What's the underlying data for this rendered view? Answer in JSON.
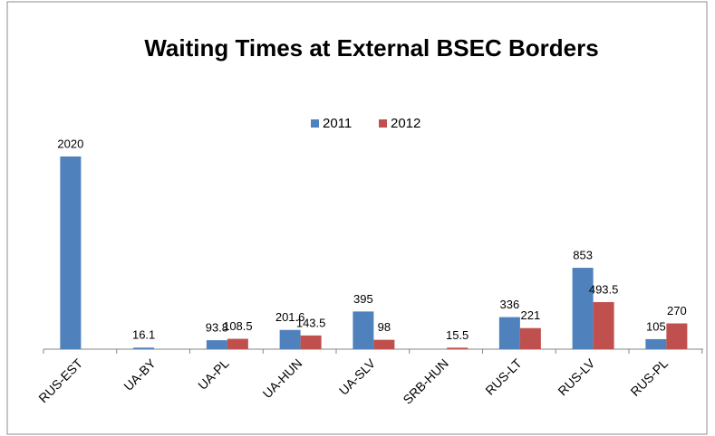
{
  "chart_data": {
    "type": "bar",
    "title": "Waiting Times at External BSEC Borders",
    "categories": [
      "RUS-EST",
      "UA-BY",
      "UA-PL",
      "UA-HUN",
      "UA-SLV",
      "SRB-HUN",
      "RUS-LT",
      "RUS-LV",
      "RUS-PL"
    ],
    "series": [
      {
        "name": "2011",
        "color": "#4f81bd",
        "values": [
          2020,
          16.1,
          93.8,
          201.6,
          395,
          null,
          336,
          853,
          105
        ]
      },
      {
        "name": "2012",
        "color": "#c0504d",
        "values": [
          null,
          null,
          108.5,
          143.5,
          98,
          15.5,
          221,
          493.5,
          270
        ]
      }
    ],
    "legend": "top"
  }
}
